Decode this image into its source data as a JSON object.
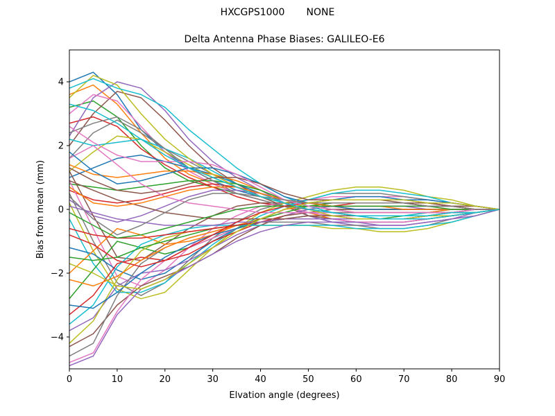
{
  "figure": {
    "suptitle": "HXCGPS1000       NONE"
  },
  "chart_data": {
    "type": "line",
    "title": "Delta Antenna Phase Biases: GALILEO-E6",
    "xlabel": "Elvation angle (degrees)",
    "ylabel": "Bias from mean (mm)",
    "xlim": [
      0,
      90
    ],
    "ylim": [
      -5,
      5
    ],
    "xticks": [
      0,
      10,
      20,
      30,
      40,
      50,
      60,
      70,
      80,
      90
    ],
    "yticks": [
      -4,
      -2,
      0,
      2,
      4
    ],
    "grid": false,
    "legend": "none",
    "x": [
      0,
      5,
      10,
      15,
      20,
      25,
      30,
      35,
      40,
      45,
      50,
      55,
      60,
      65,
      70,
      75,
      80,
      85,
      90
    ],
    "colors": [
      "#1f77b4",
      "#ff7f0e",
      "#2ca02c",
      "#d62728",
      "#9467bd",
      "#8c564b",
      "#e377c2",
      "#7f7f7f",
      "#bcbd22",
      "#17becf"
    ],
    "series": [
      {
        "values": [
          4.0,
          4.3,
          3.6,
          2.5,
          1.8,
          1.3,
          0.9,
          0.6,
          0.4,
          0.2,
          -0.2,
          -0.4,
          -0.4,
          -0.4,
          -0.4,
          -0.3,
          -0.2,
          -0.1,
          0
        ]
      },
      {
        "values": [
          3.6,
          3.9,
          3.3,
          2.4,
          1.6,
          1.1,
          0.8,
          0.5,
          0.3,
          0.1,
          -0.1,
          -0.3,
          -0.3,
          -0.3,
          -0.3,
          -0.2,
          -0.2,
          -0.1,
          0
        ]
      },
      {
        "values": [
          3.2,
          3.4,
          2.9,
          2.0,
          1.3,
          0.9,
          0.7,
          0.5,
          0.3,
          0.1,
          -0.1,
          -0.2,
          -0.3,
          -0.3,
          -0.2,
          -0.2,
          -0.1,
          -0.1,
          0
        ]
      },
      {
        "values": [
          2.7,
          2.9,
          2.6,
          1.9,
          1.4,
          1.0,
          0.7,
          0.4,
          0.2,
          0.1,
          0.0,
          -0.1,
          -0.1,
          -0.1,
          -0.1,
          -0.1,
          -0.1,
          0.0,
          0
        ]
      },
      {
        "values": [
          2.3,
          3.5,
          4.0,
          3.8,
          3.1,
          2.2,
          1.5,
          1.0,
          0.6,
          0.2,
          -0.2,
          -0.4,
          -0.5,
          -0.5,
          -0.5,
          -0.4,
          -0.3,
          -0.1,
          0
        ]
      },
      {
        "values": [
          2.0,
          3.0,
          3.7,
          3.5,
          2.8,
          2.0,
          1.3,
          0.8,
          0.4,
          0.1,
          -0.2,
          -0.3,
          -0.4,
          -0.4,
          -0.4,
          -0.3,
          -0.2,
          -0.1,
          0
        ]
      },
      {
        "values": [
          3.0,
          3.6,
          3.4,
          2.6,
          1.8,
          1.2,
          0.8,
          0.5,
          0.3,
          0.1,
          -0.1,
          -0.2,
          -0.3,
          -0.3,
          -0.3,
          -0.2,
          -0.2,
          -0.1,
          0
        ]
      },
      {
        "values": [
          1.6,
          2.4,
          2.8,
          2.4,
          1.9,
          1.5,
          1.1,
          0.7,
          0.4,
          0.2,
          0.0,
          -0.1,
          -0.2,
          -0.2,
          -0.2,
          -0.2,
          -0.1,
          -0.1,
          0
        ]
      },
      {
        "values": [
          1.2,
          1.8,
          2.3,
          2.2,
          1.8,
          1.4,
          1.0,
          0.7,
          0.4,
          0.2,
          0.0,
          -0.1,
          -0.2,
          -0.2,
          -0.2,
          -0.1,
          -0.1,
          0.0,
          0
        ]
      },
      {
        "values": [
          2.2,
          2.0,
          2.1,
          2.2,
          1.9,
          1.6,
          1.2,
          0.8,
          0.5,
          0.2,
          0.0,
          -0.1,
          -0.2,
          -0.2,
          -0.2,
          -0.1,
          -0.1,
          0.0,
          0
        ]
      },
      {
        "values": [
          1.0,
          1.3,
          1.6,
          1.7,
          1.5,
          1.3,
          1.1,
          0.8,
          0.5,
          0.3,
          0.1,
          0.0,
          -0.1,
          -0.1,
          -0.1,
          -0.1,
          0.0,
          0.0,
          0
        ]
      },
      {
        "values": [
          1.4,
          1.1,
          1.0,
          1.1,
          1.2,
          1.2,
          1.1,
          0.9,
          0.6,
          0.3,
          0.1,
          0.0,
          -0.1,
          -0.1,
          -0.1,
          -0.1,
          0.0,
          0.0,
          0
        ]
      },
      {
        "values": [
          0.8,
          0.7,
          0.6,
          0.7,
          0.8,
          0.9,
          0.9,
          0.8,
          0.6,
          0.3,
          0.1,
          0.0,
          0.0,
          0.0,
          0.0,
          0.0,
          0.0,
          0.0,
          0
        ]
      },
      {
        "values": [
          0.6,
          0.3,
          0.2,
          0.3,
          0.5,
          0.7,
          0.8,
          0.7,
          0.5,
          0.3,
          0.1,
          0.1,
          0.0,
          0.0,
          0.0,
          0.0,
          0.0,
          0.0,
          0
        ]
      },
      {
        "values": [
          0.3,
          -0.2,
          -0.4,
          -0.2,
          0.1,
          0.4,
          0.6,
          0.6,
          0.5,
          0.3,
          0.2,
          0.1,
          0.1,
          0.1,
          0.1,
          0.0,
          0.0,
          0.0,
          0
        ]
      },
      {
        "values": [
          1.2,
          -0.2,
          -1.5,
          -1.6,
          -1.1,
          -0.6,
          -0.2,
          0.1,
          0.2,
          0.2,
          0.2,
          0.3,
          0.3,
          0.3,
          0.3,
          0.2,
          0.1,
          0.1,
          0
        ]
      },
      {
        "values": [
          0.9,
          -0.6,
          -2.1,
          -2.4,
          -1.9,
          -1.2,
          -0.6,
          -0.2,
          0.1,
          0.2,
          0.3,
          0.4,
          0.4,
          0.4,
          0.4,
          0.3,
          0.2,
          0.1,
          0
        ]
      },
      {
        "values": [
          0.5,
          -1.0,
          -2.3,
          -2.7,
          -2.3,
          -1.6,
          -0.9,
          -0.4,
          0.0,
          0.2,
          0.3,
          0.5,
          0.5,
          0.5,
          0.4,
          0.3,
          0.2,
          0.1,
          0
        ]
      },
      {
        "values": [
          0.2,
          -1.3,
          -2.5,
          -2.8,
          -2.6,
          -1.9,
          -1.2,
          -0.6,
          -0.1,
          0.2,
          0.4,
          0.6,
          0.7,
          0.7,
          0.6,
          0.4,
          0.3,
          0.1,
          0
        ]
      },
      {
        "values": [
          -0.3,
          -1.7,
          -2.6,
          -2.6,
          -2.3,
          -1.7,
          -1.1,
          -0.6,
          -0.2,
          0.1,
          0.3,
          0.5,
          0.6,
          0.6,
          0.5,
          0.4,
          0.2,
          0.1,
          0
        ]
      },
      {
        "values": [
          -1.2,
          -1.4,
          -1.9,
          -2.2,
          -2.0,
          -1.5,
          -1.0,
          -0.6,
          -0.3,
          0.0,
          0.2,
          0.3,
          0.4,
          0.4,
          0.3,
          0.3,
          0.2,
          0.1,
          0
        ]
      },
      {
        "values": [
          -2.0,
          -1.3,
          -0.6,
          -0.8,
          -1.1,
          -1.0,
          -0.8,
          -0.5,
          -0.3,
          0.0,
          0.1,
          0.2,
          0.2,
          0.2,
          0.2,
          0.1,
          0.1,
          0.0,
          0
        ]
      },
      {
        "values": [
          -2.8,
          -1.9,
          -1.0,
          -1.2,
          -1.4,
          -1.2,
          -0.9,
          -0.6,
          -0.3,
          -0.1,
          0.1,
          0.2,
          0.2,
          0.2,
          0.2,
          0.1,
          0.1,
          0.0,
          0
        ]
      },
      {
        "values": [
          -3.3,
          -2.7,
          -1.7,
          -1.5,
          -1.6,
          -1.4,
          -1.0,
          -0.7,
          -0.4,
          -0.2,
          0.0,
          0.1,
          0.2,
          0.2,
          0.2,
          0.1,
          0.1,
          0.0,
          0
        ]
      },
      {
        "values": [
          -3.8,
          -3.4,
          -2.4,
          -2.0,
          -1.9,
          -1.6,
          -1.2,
          -0.8,
          -0.5,
          -0.2,
          0.0,
          0.1,
          0.1,
          0.1,
          0.1,
          0.1,
          0.1,
          0.0,
          0
        ]
      },
      {
        "values": [
          -4.3,
          -3.9,
          -3.0,
          -2.4,
          -2.1,
          -1.8,
          -1.4,
          -0.9,
          -0.5,
          -0.2,
          -0.1,
          0.0,
          0.0,
          0.0,
          0.0,
          0.0,
          0.0,
          0.0,
          0
        ]
      },
      {
        "values": [
          -4.8,
          -4.5,
          -3.2,
          -2.2,
          -1.6,
          -1.2,
          -0.9,
          -0.6,
          -0.4,
          -0.3,
          -0.3,
          -0.3,
          -0.4,
          -0.4,
          -0.4,
          -0.3,
          -0.2,
          -0.1,
          0
        ]
      },
      {
        "values": [
          -4.6,
          -4.2,
          -2.7,
          -1.7,
          -1.2,
          -0.9,
          -0.7,
          -0.5,
          -0.4,
          -0.4,
          -0.4,
          -0.5,
          -0.5,
          -0.6,
          -0.6,
          -0.5,
          -0.3,
          -0.2,
          0
        ]
      },
      {
        "values": [
          -4.2,
          -3.5,
          -2.2,
          -1.3,
          -0.9,
          -0.7,
          -0.6,
          -0.5,
          -0.5,
          -0.5,
          -0.5,
          -0.6,
          -0.6,
          -0.7,
          -0.7,
          -0.6,
          -0.4,
          -0.2,
          0
        ]
      },
      {
        "values": [
          -3.6,
          -3.0,
          -1.8,
          -1.1,
          -0.8,
          -0.6,
          -0.5,
          -0.5,
          -0.5,
          -0.5,
          -0.5,
          -0.5,
          -0.6,
          -0.6,
          -0.6,
          -0.5,
          -0.4,
          -0.2,
          0
        ]
      },
      {
        "values": [
          -3.0,
          -3.1,
          -2.6,
          -2.0,
          -1.5,
          -1.1,
          -0.8,
          -0.6,
          -0.4,
          -0.3,
          -0.2,
          -0.2,
          -0.2,
          -0.3,
          -0.3,
          -0.2,
          -0.2,
          -0.1,
          0
        ]
      },
      {
        "values": [
          -2.2,
          -2.4,
          -2.1,
          -1.6,
          -1.2,
          -0.9,
          -0.7,
          -0.5,
          -0.4,
          -0.3,
          -0.3,
          -0.3,
          -0.3,
          -0.3,
          -0.3,
          -0.3,
          -0.2,
          -0.1,
          0
        ]
      },
      {
        "values": [
          -1.5,
          -1.6,
          -1.5,
          -1.2,
          -1.0,
          -0.8,
          -0.6,
          -0.5,
          -0.4,
          -0.3,
          -0.3,
          -0.3,
          -0.3,
          -0.3,
          -0.3,
          -0.2,
          -0.2,
          -0.1,
          0
        ]
      },
      {
        "values": [
          -0.6,
          -0.8,
          -0.9,
          -0.9,
          -0.8,
          -0.7,
          -0.6,
          -0.5,
          -0.4,
          -0.3,
          -0.3,
          -0.3,
          -0.3,
          -0.3,
          -0.3,
          -0.2,
          -0.2,
          -0.1,
          0
        ]
      },
      {
        "values": [
          0.1,
          -0.1,
          -0.3,
          -0.4,
          -0.5,
          -0.5,
          -0.5,
          -0.4,
          -0.4,
          -0.3,
          -0.3,
          -0.3,
          -0.3,
          -0.3,
          -0.3,
          -0.2,
          -0.2,
          -0.1,
          0
        ]
      },
      {
        "values": [
          0.9,
          0.6,
          0.3,
          0.1,
          -0.1,
          -0.2,
          -0.3,
          -0.3,
          -0.3,
          -0.3,
          -0.2,
          -0.2,
          -0.2,
          -0.2,
          -0.2,
          -0.2,
          -0.1,
          -0.1,
          0
        ]
      },
      {
        "values": [
          1.6,
          2.0,
          1.4,
          0.8,
          0.4,
          0.2,
          0.1,
          0.0,
          -0.1,
          -0.1,
          -0.1,
          -0.1,
          -0.1,
          -0.1,
          -0.1,
          -0.1,
          -0.1,
          0.0,
          0
        ]
      },
      {
        "values": [
          2.4,
          2.7,
          2.9,
          2.5,
          1.9,
          1.3,
          0.9,
          0.5,
          0.3,
          0.1,
          0.0,
          -0.1,
          -0.1,
          -0.1,
          -0.1,
          -0.1,
          -0.1,
          0.0,
          0
        ]
      },
      {
        "values": [
          3.5,
          4.2,
          3.9,
          3.0,
          2.2,
          1.6,
          1.1,
          0.7,
          0.4,
          0.2,
          0.0,
          -0.2,
          -0.3,
          -0.3,
          -0.3,
          -0.2,
          -0.2,
          -0.1,
          0
        ]
      },
      {
        "values": [
          3.8,
          4.1,
          3.8,
          3.6,
          3.2,
          2.5,
          1.9,
          1.3,
          0.8,
          0.4,
          0.1,
          -0.1,
          -0.2,
          -0.3,
          -0.3,
          -0.3,
          -0.2,
          -0.1,
          0
        ]
      },
      {
        "values": [
          1.8,
          1.2,
          0.8,
          0.9,
          1.1,
          1.3,
          1.3,
          1.1,
          0.8,
          0.4,
          0.2,
          0.1,
          0.0,
          0.0,
          0.0,
          0.0,
          0.0,
          0.0,
          0
        ]
      },
      {
        "values": [
          0.7,
          0.2,
          0.1,
          0.2,
          0.4,
          0.6,
          0.7,
          0.7,
          0.5,
          0.3,
          0.2,
          0.1,
          0.1,
          0.1,
          0.0,
          0.0,
          0.0,
          0.0,
          0
        ]
      },
      {
        "values": [
          -0.1,
          -0.5,
          -0.9,
          -0.8,
          -0.6,
          -0.4,
          -0.2,
          0.0,
          0.1,
          0.1,
          0.1,
          0.1,
          0.1,
          0.1,
          0.1,
          0.1,
          0.0,
          0.0,
          0
        ]
      },
      {
        "values": [
          -0.8,
          -1.1,
          -1.6,
          -1.8,
          -1.6,
          -1.2,
          -0.8,
          -0.4,
          -0.1,
          0.1,
          0.2,
          0.2,
          0.2,
          0.2,
          0.2,
          0.2,
          0.1,
          0.0,
          0
        ]
      },
      {
        "values": [
          -4.9,
          -4.6,
          -3.3,
          -2.5,
          -2.2,
          -1.8,
          -1.4,
          -1.0,
          -0.7,
          -0.5,
          -0.4,
          -0.4,
          -0.4,
          -0.5,
          -0.5,
          -0.4,
          -0.3,
          -0.2,
          0
        ]
      },
      {
        "values": [
          1.3,
          0.9,
          0.6,
          0.5,
          0.6,
          0.8,
          1.0,
          1.0,
          0.8,
          0.5,
          0.3,
          0.3,
          0.3,
          0.3,
          0.2,
          0.2,
          0.1,
          0.1,
          0
        ]
      },
      {
        "values": [
          2.6,
          2.1,
          1.7,
          1.5,
          1.5,
          1.5,
          1.4,
          1.1,
          0.7,
          0.3,
          0.1,
          0.0,
          -0.1,
          -0.1,
          -0.1,
          -0.1,
          -0.1,
          0.0,
          0
        ]
      },
      {
        "values": [
          0.4,
          -0.3,
          -0.8,
          -0.5,
          -0.1,
          0.3,
          0.5,
          0.5,
          0.4,
          0.3,
          0.2,
          0.2,
          0.2,
          0.2,
          0.2,
          0.1,
          0.1,
          0.0,
          0
        ]
      },
      {
        "values": [
          -1.7,
          -2.0,
          -2.4,
          -2.5,
          -2.2,
          -1.7,
          -1.2,
          -0.7,
          -0.3,
          0.0,
          0.2,
          0.3,
          0.3,
          0.3,
          0.3,
          0.2,
          0.2,
          0.1,
          0
        ]
      },
      {
        "values": [
          3.3,
          3.1,
          2.7,
          2.2,
          1.7,
          1.3,
          1.0,
          0.7,
          0.4,
          0.2,
          0.0,
          -0.1,
          -0.2,
          -0.2,
          -0.2,
          -0.2,
          -0.1,
          -0.1,
          0
        ]
      }
    ]
  }
}
